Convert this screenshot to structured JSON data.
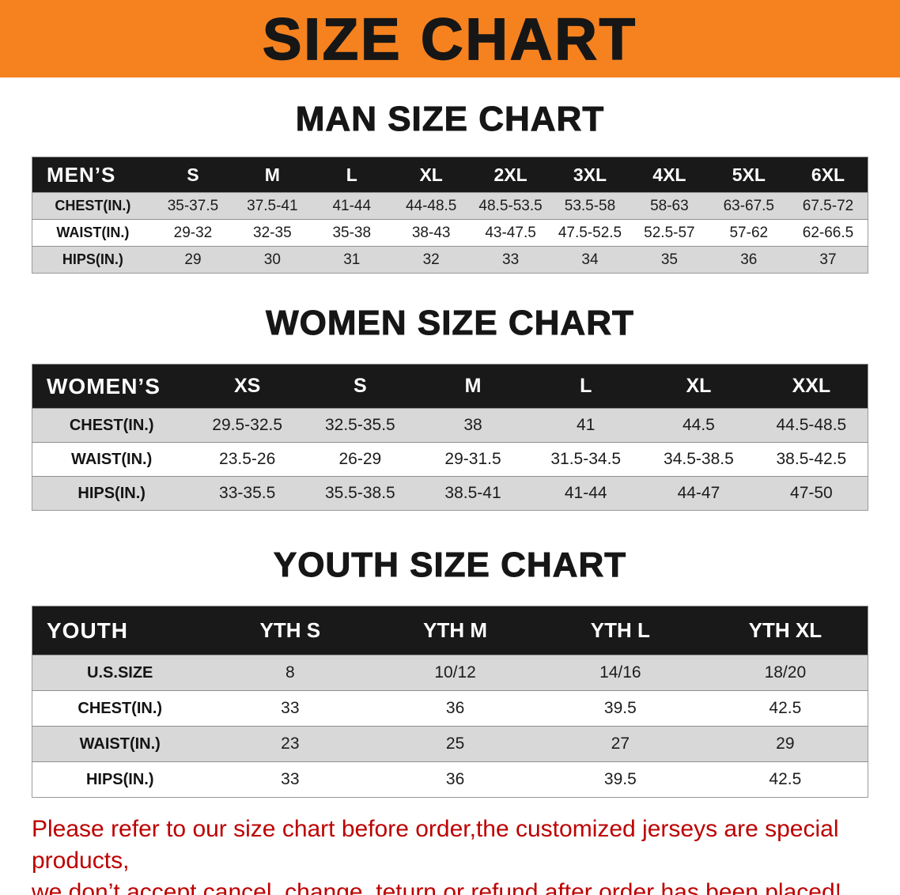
{
  "banner": {
    "title": "SIZE CHART",
    "bg_color": "#f5821f"
  },
  "chart_data": [
    {
      "type": "table",
      "title": "MAN SIZE CHART",
      "columns": [
        "MEN’S",
        "S",
        "M",
        "L",
        "XL",
        "2XL",
        "3XL",
        "4XL",
        "5XL",
        "6XL"
      ],
      "rows": [
        [
          "CHEST(IN.)",
          "35-37.5",
          "37.5-41",
          "41-44",
          "44-48.5",
          "48.5-53.5",
          "53.5-58",
          "58-63",
          "63-67.5",
          "67.5-72"
        ],
        [
          "WAIST(IN.)",
          "29-32",
          "32-35",
          "35-38",
          "38-43",
          "43-47.5",
          "47.5-52.5",
          "52.5-57",
          "57-62",
          "62-66.5"
        ],
        [
          "HIPS(IN.)",
          "29",
          "30",
          "31",
          "32",
          "33",
          "34",
          "35",
          "36",
          "37"
        ]
      ]
    },
    {
      "type": "table",
      "title": "WOMEN SIZE CHART",
      "columns": [
        "WOMEN’S",
        "XS",
        "S",
        "M",
        "L",
        "XL",
        "XXL"
      ],
      "rows": [
        [
          "CHEST(IN.)",
          "29.5-32.5",
          "32.5-35.5",
          "38",
          "41",
          "44.5",
          "44.5-48.5"
        ],
        [
          "WAIST(IN.)",
          "23.5-26",
          "26-29",
          "29-31.5",
          "31.5-34.5",
          "34.5-38.5",
          "38.5-42.5"
        ],
        [
          "HIPS(IN.)",
          "33-35.5",
          "35.5-38.5",
          "38.5-41",
          "41-44",
          "44-47",
          "47-50"
        ]
      ]
    },
    {
      "type": "table",
      "title": "YOUTH SIZE CHART",
      "columns": [
        "YOUTH",
        "YTH S",
        "YTH M",
        "YTH L",
        "YTH XL"
      ],
      "rows": [
        [
          "U.S.SIZE",
          "8",
          "10/12",
          "14/16",
          "18/20"
        ],
        [
          "CHEST(IN.)",
          "33",
          "36",
          "39.5",
          "42.5"
        ],
        [
          "WAIST(IN.)",
          "23",
          "25",
          "27",
          "29"
        ],
        [
          "HIPS(IN.)",
          "33",
          "36",
          "39.5",
          "42.5"
        ]
      ]
    }
  ],
  "footer": {
    "line1": "Please refer to our size chart before order,the customized jerseys are special products,",
    "line2": "we don’t accept cancel, change, teturn or refund after order has been placed!",
    "text_color": "#bd0000"
  }
}
